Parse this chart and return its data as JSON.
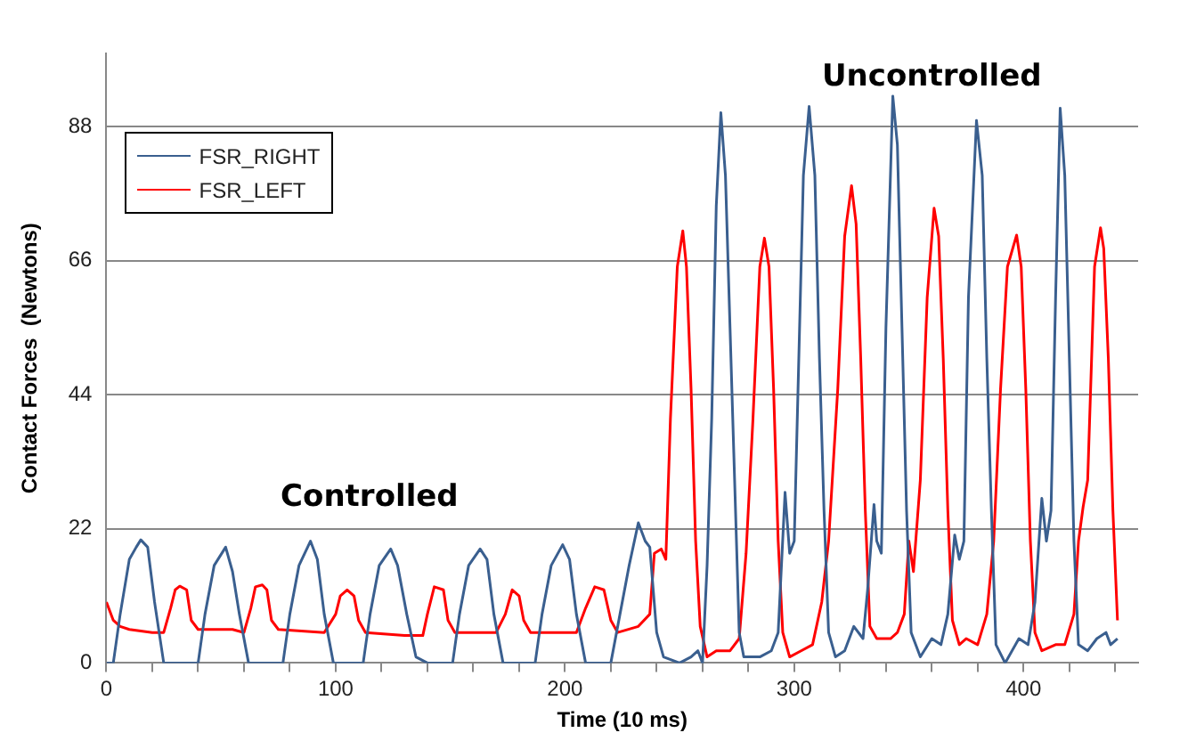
{
  "chart_data": {
    "type": "line",
    "xlabel": "Time (10 ms)",
    "ylabel": "Contact Forces  (Newtons)",
    "xlim": [
      0,
      450
    ],
    "ylim": [
      0,
      100
    ],
    "xticks": [
      0,
      {
        "value": 20,
        "label": null
      },
      {
        "value": 40,
        "label": null
      },
      {
        "value": 60,
        "label": null
      },
      {
        "value": 80,
        "label": null
      },
      100,
      {
        "value": 120,
        "label": null
      },
      {
        "value": 140,
        "label": null
      },
      {
        "value": 160,
        "label": null
      },
      {
        "value": 180,
        "label": null
      },
      200,
      {
        "value": 220,
        "label": null
      },
      {
        "value": 240,
        "label": null
      },
      {
        "value": 260,
        "label": null
      },
      {
        "value": 280,
        "label": null
      },
      300,
      {
        "value": 320,
        "label": null
      },
      {
        "value": 340,
        "label": null
      },
      {
        "value": 360,
        "label": null
      },
      {
        "value": 380,
        "label": null
      },
      400,
      {
        "value": 420,
        "label": null
      },
      {
        "value": 440,
        "label": null
      }
    ],
    "yticks": [
      0,
      22,
      44,
      66,
      88
    ],
    "grid": "y",
    "legend": "top left",
    "marker": "none",
    "line_style": "solid",
    "annotations": [
      "Controlled",
      "Uncontrolled"
    ],
    "series": [
      {
        "name": "FSR_RIGHT",
        "color": "#3a5f8f",
        "x": [
          0,
          3,
          6,
          10,
          13,
          15,
          18,
          21,
          25,
          40,
          43,
          47,
          52,
          55,
          58,
          62,
          77,
          80,
          84,
          89,
          92,
          95,
          99,
          112,
          115,
          119,
          124,
          127,
          131,
          135,
          140,
          151,
          154,
          158,
          163,
          166,
          169,
          173,
          187,
          190,
          194,
          199,
          202,
          205,
          209,
          220,
          224,
          228,
          232,
          235,
          237,
          240,
          243,
          250,
          255,
          258,
          260,
          262,
          264,
          266,
          268,
          270,
          272,
          274,
          276,
          278,
          285,
          290,
          293,
          296,
          298,
          300,
          302,
          304,
          306.5,
          309,
          311,
          313,
          315,
          318,
          322,
          326,
          330,
          332,
          334.8,
          336,
          338,
          340,
          343,
          345,
          347,
          349,
          351,
          355,
          360,
          364,
          367,
          370,
          372,
          374,
          376,
          379.5,
          382,
          384,
          386,
          388,
          392,
          398,
          402,
          405,
          408,
          410,
          412,
          414,
          416,
          418,
          420,
          422,
          424,
          428,
          432,
          436,
          438,
          441
        ],
        "values": [
          0,
          0,
          8,
          17,
          19,
          20.2,
          19,
          10,
          0,
          0,
          8,
          16,
          19,
          15,
          8,
          0,
          0,
          8,
          16,
          20,
          17,
          8,
          0,
          0,
          8,
          16,
          18.7,
          16,
          8,
          1,
          0,
          0,
          8,
          16,
          18.7,
          17,
          8,
          0,
          0,
          8,
          16,
          19.4,
          17,
          8,
          0,
          0,
          8,
          16,
          23,
          20,
          19,
          5,
          1,
          0,
          1,
          2,
          0,
          16,
          40,
          75,
          90.3,
          80,
          55,
          30,
          5,
          1,
          1,
          2,
          5,
          28,
          18,
          20,
          50,
          80,
          91.3,
          80,
          50,
          25,
          5,
          1,
          2,
          6,
          4,
          12,
          26,
          20,
          18,
          55,
          93,
          85,
          55,
          25,
          5,
          1,
          4,
          3,
          8,
          21,
          17,
          20,
          60,
          89,
          80,
          50,
          25,
          3,
          0,
          4,
          3,
          10,
          27,
          20,
          25,
          60,
          91,
          80,
          50,
          20,
          3,
          2,
          4,
          5,
          3,
          4
        ]
      },
      {
        "name": "FSR_LEFT",
        "color": "#ff0000",
        "x": [
          0,
          3,
          6,
          10,
          20,
          25,
          28,
          30,
          32,
          35,
          37,
          40,
          55,
          60,
          63,
          65,
          68,
          70,
          72,
          75,
          95,
          100,
          102,
          105,
          108,
          110,
          113,
          130,
          138,
          140,
          143,
          147,
          149,
          152,
          170,
          174,
          177,
          180,
          182,
          185,
          205,
          209,
          213,
          217,
          220,
          223,
          232,
          237,
          239,
          242,
          244,
          246,
          249,
          251.4,
          253,
          255,
          257,
          259,
          262,
          266,
          272,
          276,
          279,
          282,
          285,
          287,
          289,
          291,
          293,
          295,
          298,
          303,
          308,
          312,
          315,
          319,
          322,
          325,
          327,
          329,
          331,
          333,
          336,
          342,
          345,
          348,
          350,
          352,
          355,
          358,
          361,
          363,
          365,
          367,
          369,
          372,
          375,
          380,
          384,
          387,
          390,
          393,
          397,
          399,
          401,
          403,
          405,
          408,
          414,
          418,
          422,
          424,
          426,
          428,
          431,
          433.6,
          435,
          437,
          439,
          441
        ],
        "values": [
          10,
          7,
          6,
          5.5,
          5,
          5,
          9,
          12,
          12.6,
          12,
          7,
          5.5,
          5.5,
          5,
          9,
          12.5,
          12.8,
          12,
          7,
          5.5,
          5,
          8,
          11,
          12,
          11,
          7,
          5,
          4.5,
          4.5,
          8,
          12.5,
          12,
          7,
          5,
          5,
          8,
          12,
          11,
          7,
          5,
          5,
          9,
          12.5,
          12,
          7,
          5,
          6,
          8,
          18,
          18.7,
          17,
          40,
          65,
          70.9,
          65,
          45,
          20,
          6,
          1,
          2,
          2,
          4,
          18,
          40,
          65,
          69.7,
          65,
          45,
          20,
          5,
          1,
          2,
          3,
          10,
          20,
          45,
          70,
          78.3,
          72,
          50,
          25,
          6,
          4,
          4,
          5,
          8,
          20,
          15,
          30,
          60,
          74.6,
          70,
          50,
          25,
          7,
          3,
          4,
          3,
          8,
          20,
          45,
          65,
          70.2,
          65,
          45,
          20,
          5,
          2,
          3,
          3,
          8,
          20,
          25.6,
          30,
          65,
          71.4,
          68,
          50,
          25,
          7
        ]
      }
    ]
  }
}
